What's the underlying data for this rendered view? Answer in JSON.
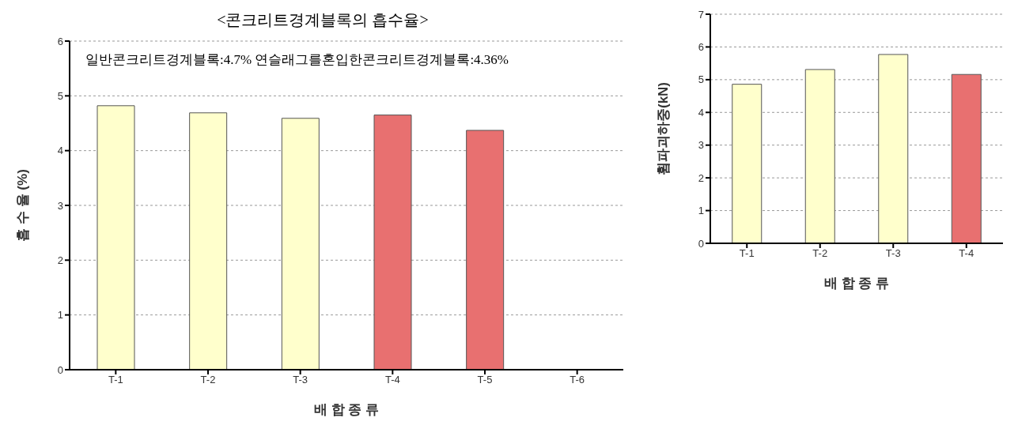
{
  "chart_data": [
    {
      "type": "bar",
      "title": "<콘크리트경계블록의 흡수율>",
      "xlabel": "배 합 종 류",
      "ylabel": "흡 수 율 (%)",
      "categories": [
        "T-1",
        "T-2",
        "T-3",
        "T-4",
        "T-5",
        "T-6"
      ],
      "values": [
        4.82,
        4.69,
        4.59,
        4.65,
        4.37,
        null
      ],
      "colors": [
        "#ffffcc",
        "#ffffcc",
        "#ffffcc",
        "#e87070",
        "#e87070",
        "#e87070"
      ],
      "ylim": [
        0,
        6
      ],
      "yticks": [
        0,
        1,
        2,
        3,
        4,
        5,
        6
      ],
      "grid": "y",
      "annotations": [
        "일반콘크리트경계블록:4.7%  연슬래그를혼입한콘크리트경계블록:4.36%"
      ]
    },
    {
      "type": "bar",
      "xlabel": "배 합 종 류",
      "ylabel": "휨파괴하중(kN)",
      "categories": [
        "T-1",
        "T-2",
        "T-3",
        "T-4"
      ],
      "values": [
        4.86,
        5.31,
        5.77,
        5.16
      ],
      "colors": [
        "#ffffcc",
        "#ffffcc",
        "#ffffcc",
        "#e87070"
      ],
      "ylim": [
        0,
        7
      ],
      "yticks": [
        0,
        1,
        2,
        3,
        4,
        5,
        6,
        7
      ],
      "grid": "y"
    }
  ]
}
